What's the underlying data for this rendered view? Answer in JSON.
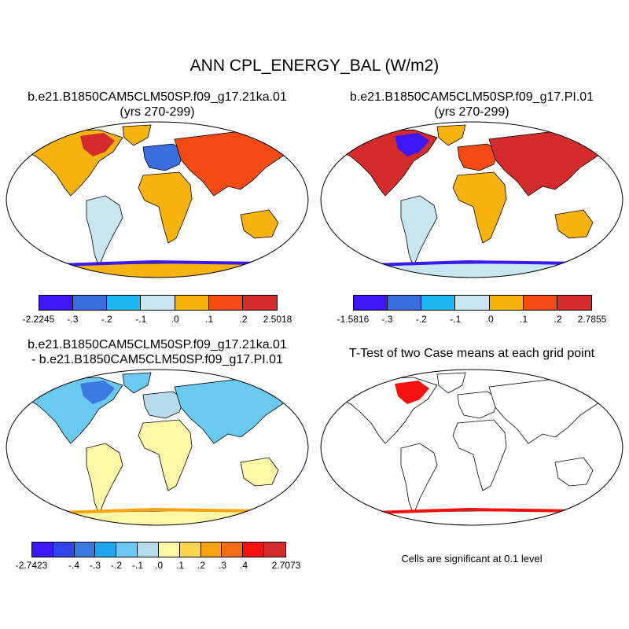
{
  "title": "ANN CPL_ENERGY_BAL (W/m2)",
  "panels": [
    {
      "name": "case1",
      "line1": "b.e21.B1850CAM5CLM50SP.f09_g17.21ka.01",
      "line2": "(yrs 270-299)"
    },
    {
      "name": "case2",
      "line1": "b.e21.B1850CAM5CLM50SP.f09_g17.PI.01",
      "line2": "(yrs 270-299)"
    },
    {
      "name": "diff",
      "line1": "b.e21.B1850CAM5CLM50SP.f09_g17.21ka.01",
      "line2": "- b.e21.B1850CAM5CLM50SP.f09_g17.PI.01"
    },
    {
      "name": "ttest",
      "line1": "T-Test of two Case means at each grid point",
      "line2": ""
    }
  ],
  "colorbars": [
    {
      "name": "case1",
      "colors": [
        "#3d18f5",
        "#3a6ee0",
        "#1fb4f0",
        "#c8e6f2",
        "#f8b30e",
        "#f44a14",
        "#d42b2b"
      ],
      "labels": [
        "-2.2245",
        "-.3",
        "-.2",
        "-.1",
        ".0",
        ".1",
        ".2",
        "2.5018"
      ]
    },
    {
      "name": "case2",
      "colors": [
        "#3d18f5",
        "#3a6ee0",
        "#1fb4f0",
        "#c8e6f2",
        "#f8b30e",
        "#f44a14",
        "#d42b2b"
      ],
      "labels": [
        "-1.5816",
        "-.3",
        "-.2",
        "-.1",
        ".0",
        ".1",
        ".2",
        "2.7855"
      ]
    },
    {
      "name": "diff",
      "colors": [
        "#3d18f5",
        "#2f44ea",
        "#3a7ae0",
        "#1fa6f0",
        "#6ac9f0",
        "#b6dbea",
        "#fdf7a6",
        "#fcd54e",
        "#f8a412",
        "#f46d14",
        "#f51010",
        "#d42b2b"
      ],
      "labels": [
        "-2.7423",
        "-.4",
        "-.3",
        "-.2",
        "-.1",
        ".0",
        ".1",
        ".2",
        ".3",
        ".4",
        "2.7073"
      ]
    }
  ],
  "ttest_note": "Cells are significant at 0.1 level",
  "map_fills": {
    "case1": {
      "ocean": "#ffffff",
      "north_america": "#f8b30e",
      "north_america_hi": "#d42b2b",
      "greenland": "#f8b30e",
      "south_america": "#c8e6f2",
      "africa": "#f8b30e",
      "europe": "#3a6ee0",
      "asia": "#f44a14",
      "australia": "#f8b30e",
      "antarctica": "#f8b30e",
      "ant_edge": "#3d18f5"
    },
    "case2": {
      "ocean": "#ffffff",
      "north_america": "#d42b2b",
      "north_america_hi": "#3d18f5",
      "greenland": "#f8b30e",
      "south_america": "#c8e6f2",
      "africa": "#f8b30e",
      "europe": "#f44a14",
      "asia": "#d42b2b",
      "australia": "#f8b30e",
      "antarctica": "#c8e6f2",
      "ant_edge": "#3d18f5"
    },
    "diff": {
      "ocean": "#ffffff",
      "north_america": "#6ac9f0",
      "north_america_hi": "#3a7ae0",
      "greenland": "#6ac9f0",
      "south_america": "#fdf7a6",
      "africa": "#fdf7a6",
      "europe": "#b6dbea",
      "asia": "#6ac9f0",
      "australia": "#fdf7a6",
      "antarctica": "#fdf7a6",
      "ant_edge": "#f8a412"
    },
    "ttest": {
      "ocean": "#ffffff",
      "north_america": "#ffffff",
      "north_america_hi": "#f51010",
      "greenland": "#ffffff",
      "south_america": "#ffffff",
      "africa": "#ffffff",
      "europe": "#ffffff",
      "asia": "#ffffff",
      "australia": "#ffffff",
      "antarctica": "#ffffff",
      "ant_edge": "#f51010"
    }
  }
}
